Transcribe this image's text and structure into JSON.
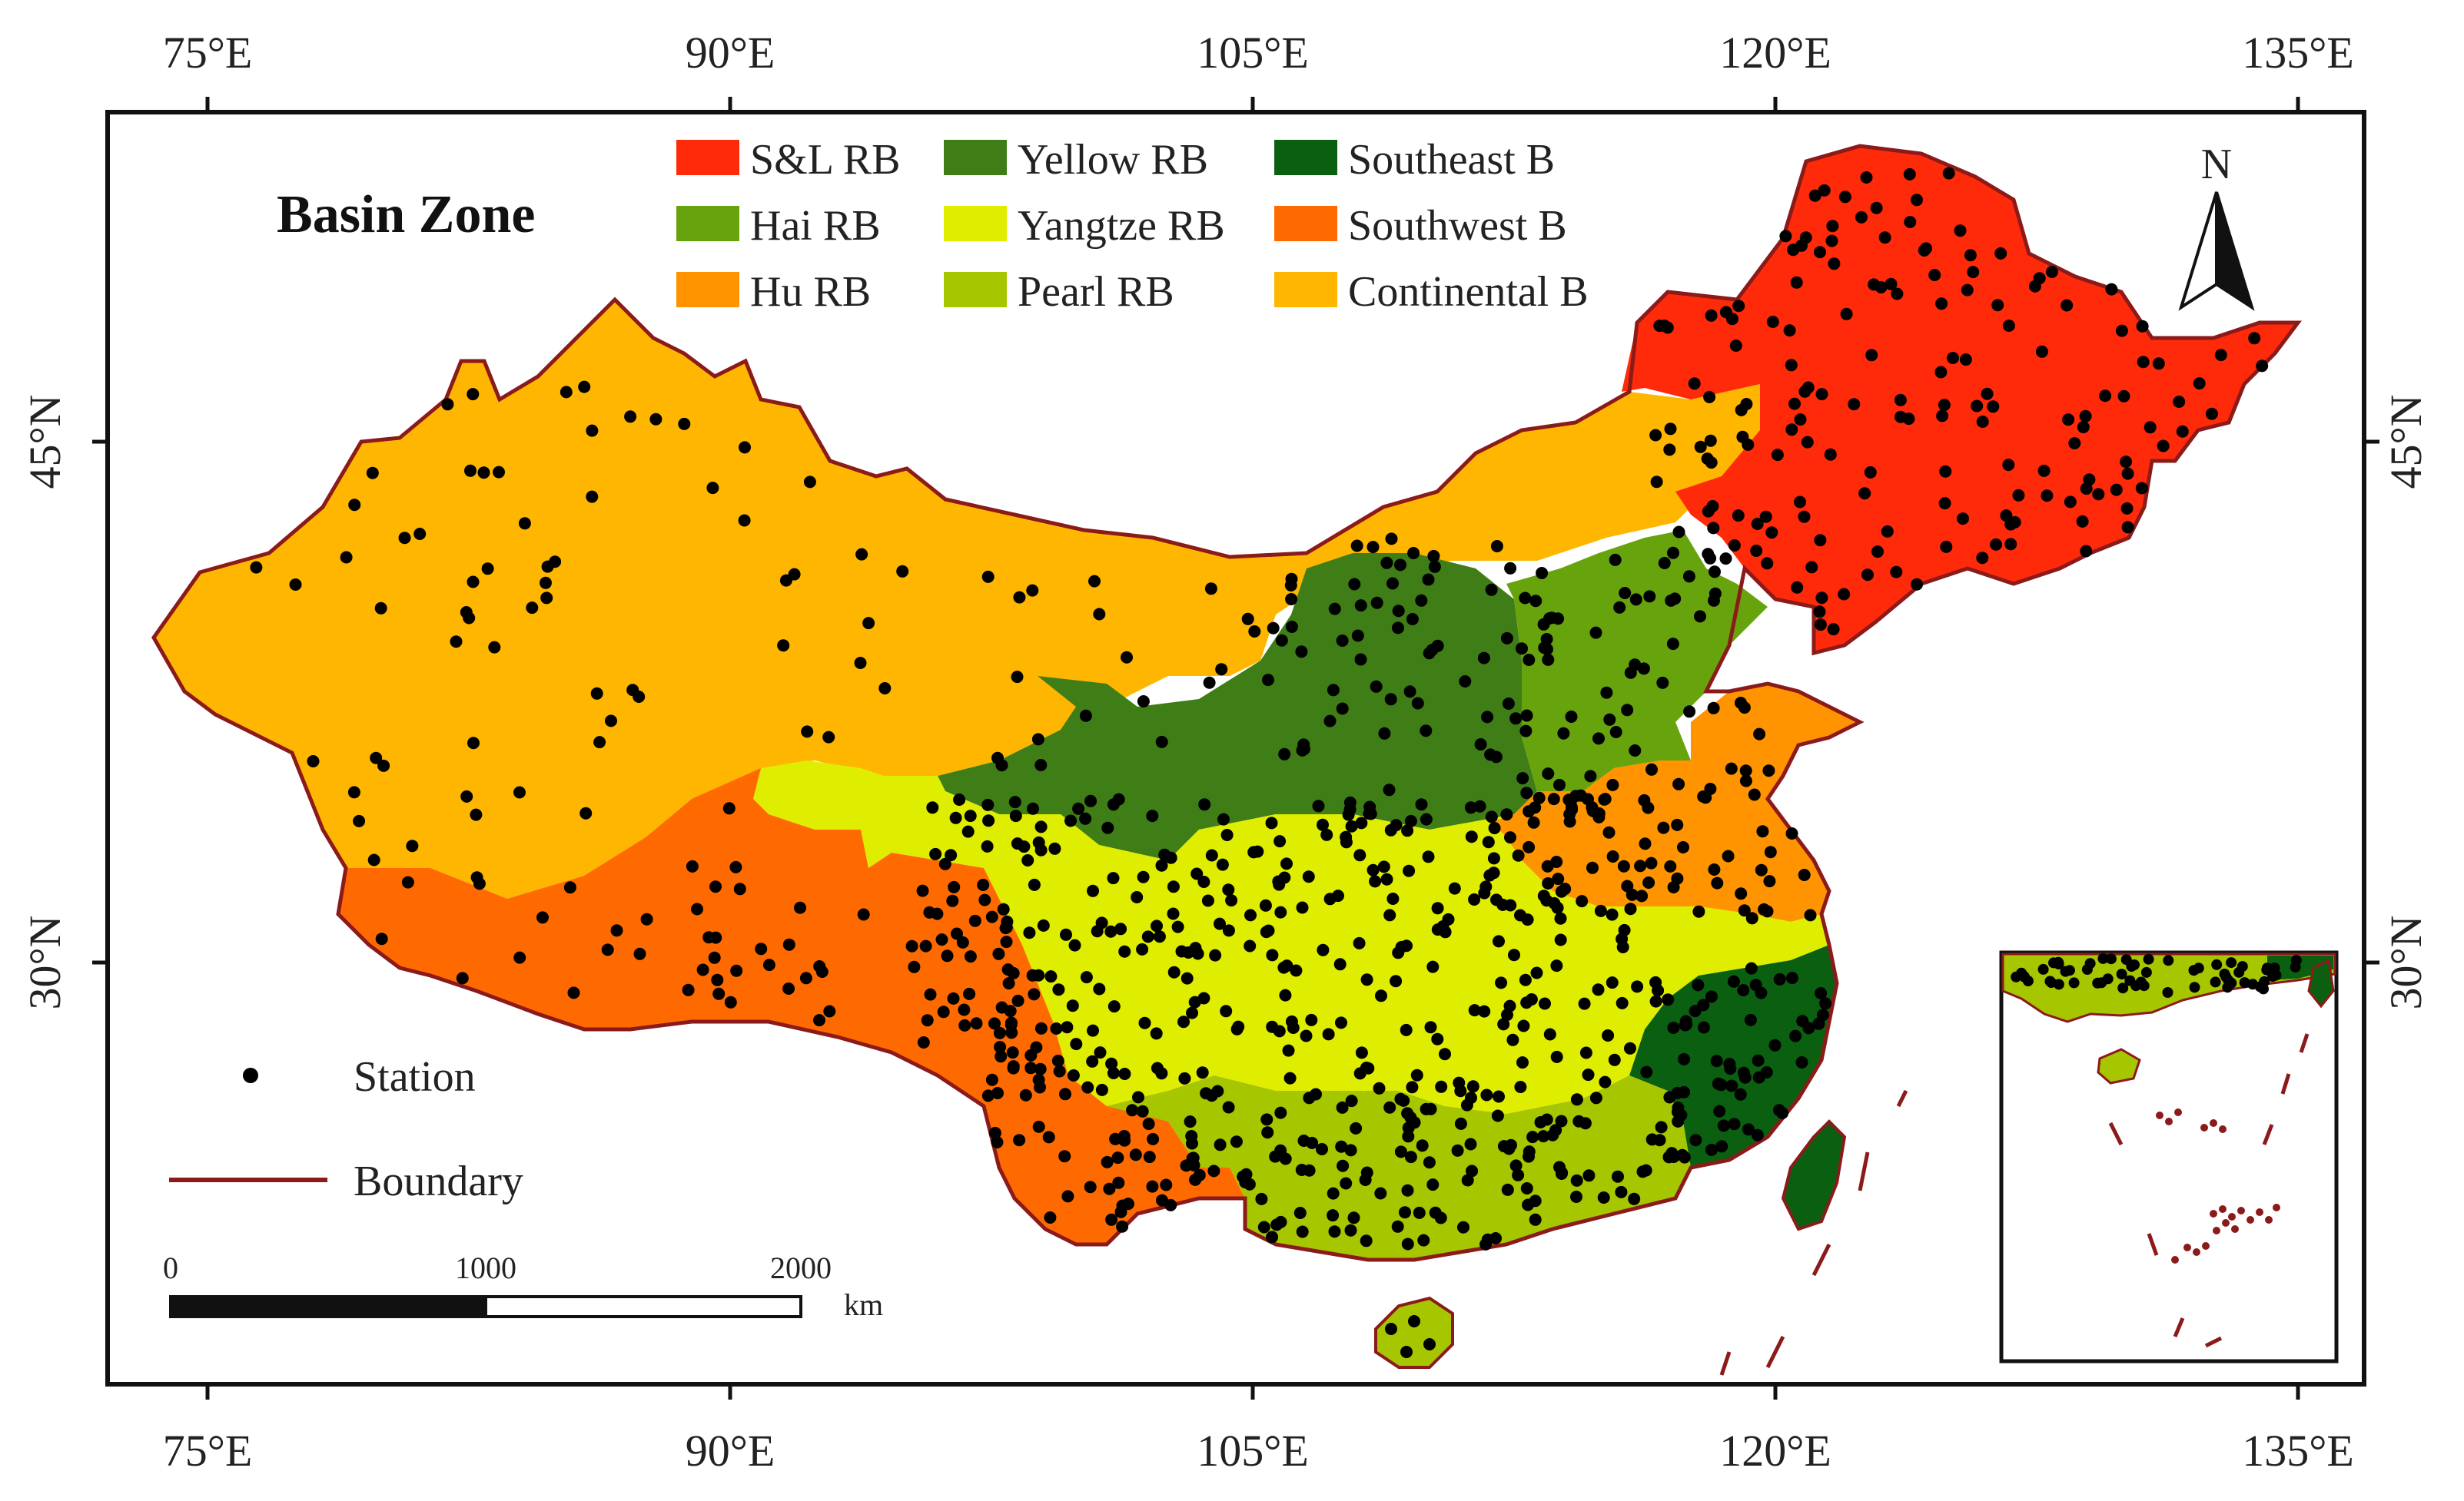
{
  "title": "Basin Zone",
  "colors": {
    "boundary": "#8b1a1a",
    "S&L RB": "#ff2a0a",
    "Yellow RB": "#3f7d16",
    "Southeast B": "#0a6010",
    "Hai RB": "#67a30d",
    "Yangtze RB": "#dfee00",
    "Southwest B": "#ff6a00",
    "Hu RB": "#ff9400",
    "Pearl RB": "#a6c600",
    "Continental B": "#ffb600",
    "station": "#000000"
  },
  "legend": {
    "basins": [
      {
        "label": "S&L RB",
        "key": "S&L RB"
      },
      {
        "label": "Yellow RB",
        "key": "Yellow RB"
      },
      {
        "label": "Southeast  B",
        "key": "Southeast B"
      },
      {
        "label": "Hai RB",
        "key": "Hai RB"
      },
      {
        "label": "Yangtze RB",
        "key": "Yangtze RB"
      },
      {
        "label": "Southwest B",
        "key": "Southwest B"
      },
      {
        "label": "Hu RB",
        "key": "Hu RB"
      },
      {
        "label": "Pearl  RB",
        "key": "Pearl RB"
      },
      {
        "label": "Continental B",
        "key": "Continental B"
      }
    ],
    "station_label": "Station",
    "boundary_label": "Boundary"
  },
  "axes": {
    "lon_labels": [
      "75°E",
      "90°E",
      "105°E",
      "120°E",
      "135°E"
    ],
    "lat_labels": [
      "45°N",
      "30°N"
    ]
  },
  "scale_bar": {
    "labels": [
      "0",
      "1000",
      "2000"
    ],
    "unit": "km"
  },
  "north_arrow": "N"
}
